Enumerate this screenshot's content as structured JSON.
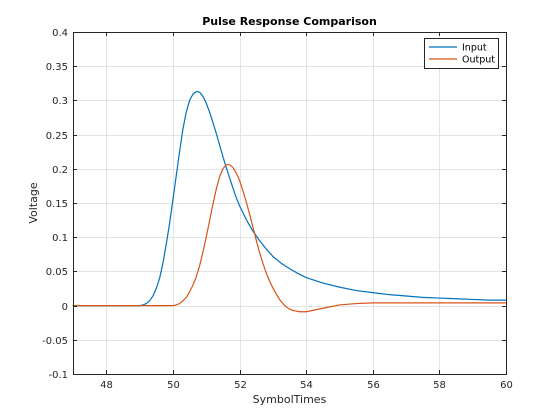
{
  "chart_data": {
    "type": "line",
    "title": "Pulse Response Comparison",
    "xlabel": "SymbolTimes",
    "ylabel": "Voltage",
    "xlim": [
      47,
      60
    ],
    "ylim": [
      -0.1,
      0.4
    ],
    "xticks": [
      48,
      50,
      52,
      54,
      56,
      58,
      60
    ],
    "xtick_labels": [
      "48",
      "50",
      "52",
      "54",
      "56",
      "58",
      "60"
    ],
    "yticks": [
      -0.1,
      -0.05,
      0,
      0.05,
      0.1,
      0.15,
      0.2,
      0.25,
      0.3,
      0.35,
      0.4
    ],
    "ytick_labels": [
      "-0.1",
      "-0.05",
      "0",
      "0.05",
      "0.1",
      "0.15",
      "0.2",
      "0.25",
      "0.3",
      "0.35",
      "0.4"
    ],
    "grid": true,
    "legend_position": "top-right",
    "series": [
      {
        "name": "Input",
        "color": "#0072bd",
        "x": [
          47,
          48,
          49,
          49.1,
          49.2,
          49.3,
          49.4,
          49.5,
          49.6,
          49.7,
          49.8,
          49.9,
          50,
          50.1,
          50.2,
          50.3,
          50.4,
          50.5,
          50.6,
          50.7,
          50.8,
          50.9,
          51,
          51.1,
          51.2,
          51.3,
          51.4,
          51.5,
          51.6,
          51.7,
          51.8,
          51.9,
          52,
          52.2,
          52.4,
          52.6,
          52.8,
          53,
          53.25,
          53.5,
          53.75,
          54,
          54.5,
          55,
          55.5,
          56,
          56.5,
          57,
          57.5,
          58,
          58.5,
          59,
          59.5,
          60
        ],
        "y": [
          0,
          0,
          0,
          0.001,
          0.003,
          0.007,
          0.014,
          0.025,
          0.04,
          0.062,
          0.09,
          0.12,
          0.155,
          0.19,
          0.225,
          0.258,
          0.283,
          0.3,
          0.309,
          0.313,
          0.312,
          0.306,
          0.296,
          0.283,
          0.268,
          0.252,
          0.235,
          0.218,
          0.202,
          0.187,
          0.172,
          0.158,
          0.146,
          0.126,
          0.109,
          0.095,
          0.083,
          0.072,
          0.062,
          0.054,
          0.047,
          0.041,
          0.033,
          0.027,
          0.022,
          0.019,
          0.016,
          0.014,
          0.012,
          0.011,
          0.01,
          0.009,
          0.008,
          0.008
        ]
      },
      {
        "name": "Output",
        "color": "#d95319",
        "x": [
          47,
          48,
          49,
          50,
          50.1,
          50.2,
          50.3,
          50.4,
          50.5,
          50.6,
          50.7,
          50.8,
          50.9,
          51,
          51.1,
          51.2,
          51.3,
          51.4,
          51.5,
          51.6,
          51.7,
          51.8,
          51.9,
          52,
          52.1,
          52.2,
          52.3,
          52.4,
          52.5,
          52.6,
          52.7,
          52.8,
          52.9,
          53,
          53.1,
          53.2,
          53.3,
          53.4,
          53.5,
          53.6,
          53.7,
          53.8,
          53.9,
          54,
          54.2,
          54.4,
          54.6,
          54.8,
          55,
          55.5,
          56,
          57,
          58,
          59,
          60
        ],
        "y": [
          0,
          0,
          0,
          0,
          0.001,
          0.003,
          0.007,
          0.012,
          0.02,
          0.03,
          0.042,
          0.058,
          0.078,
          0.1,
          0.124,
          0.148,
          0.17,
          0.188,
          0.2,
          0.206,
          0.206,
          0.202,
          0.194,
          0.183,
          0.168,
          0.152,
          0.134,
          0.115,
          0.096,
          0.078,
          0.062,
          0.048,
          0.036,
          0.026,
          0.017,
          0.009,
          0.003,
          -0.002,
          -0.005,
          -0.007,
          -0.008,
          -0.009,
          -0.009,
          -0.009,
          -0.007,
          -0.005,
          -0.003,
          -0.001,
          0.001,
          0.003,
          0.004,
          0.004,
          0.004,
          0.004,
          0.004
        ]
      }
    ]
  }
}
